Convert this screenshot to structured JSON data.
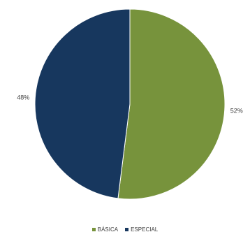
{
  "chart_data": {
    "type": "pie",
    "categories": [
      "BÁSICA",
      "ESPECIAL"
    ],
    "values": [
      52,
      48
    ],
    "data_labels": [
      "52%",
      "48%"
    ],
    "colors": [
      "#77933c",
      "#17375e"
    ],
    "start_angle_deg": 0,
    "direction": "clockwise",
    "legend_placement": "bottom",
    "title": ""
  }
}
